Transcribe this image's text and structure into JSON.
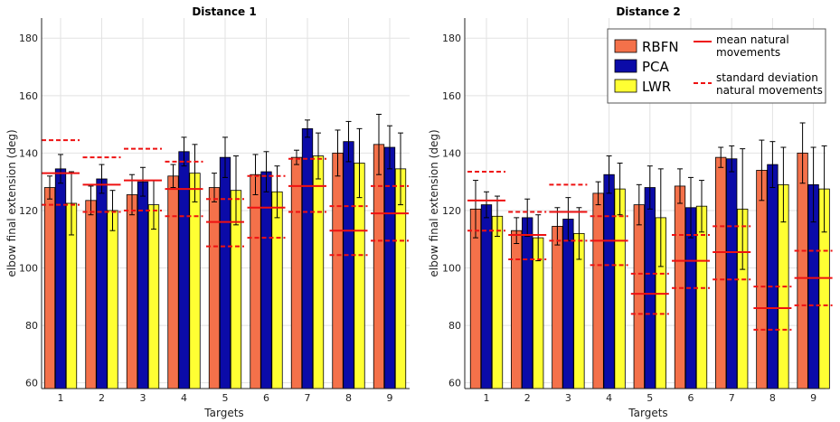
{
  "chart_data": [
    {
      "type": "bar",
      "title": "Distance 1",
      "xlabel": "Targets",
      "ylabel": "elbow final extension (deg)",
      "ylim": [
        58,
        187
      ],
      "yticks": [
        60,
        80,
        100,
        120,
        140,
        160,
        180
      ],
      "grid": true,
      "categories": [
        "1",
        "2",
        "3",
        "4",
        "5",
        "6",
        "7",
        "8",
        "9"
      ],
      "series": [
        {
          "name": "RBFN",
          "color": "#f4714a",
          "values": [
            128,
            123.5,
            125.5,
            132,
            128,
            132.5,
            138.5,
            140,
            143
          ],
          "errors": [
            4,
            5,
            7,
            4,
            5,
            7,
            2.5,
            8,
            10.5
          ]
        },
        {
          "name": "PCA",
          "color": "#0b0ba8",
          "values": [
            134.5,
            131,
            130,
            140.5,
            138.5,
            133.5,
            148.5,
            144,
            142
          ],
          "errors": [
            5,
            5,
            5,
            5,
            7,
            7,
            3,
            7,
            7.5
          ]
        },
        {
          "name": "LWR",
          "color": "#ffff33",
          "values": [
            122.5,
            120,
            122,
            133,
            127,
            126.5,
            139,
            136.5,
            134.5
          ],
          "errors": [
            11,
            7,
            8.5,
            10,
            12,
            9,
            8,
            12,
            12.5
          ]
        }
      ],
      "natural_mean": [
        133,
        129,
        130.5,
        127.5,
        116,
        121,
        128.5,
        113,
        119
      ],
      "natural_std_upper": [
        144.5,
        138.5,
        141.5,
        137,
        124,
        132,
        138,
        121.5,
        128.5
      ],
      "natural_std_lower": [
        122,
        119.5,
        120,
        118,
        107.5,
        110.5,
        119.5,
        104.5,
        109.5
      ]
    },
    {
      "type": "bar",
      "title": "Distance 2",
      "xlabel": "Targets",
      "ylabel": "elbow final extension (deg)",
      "ylim": [
        58,
        187
      ],
      "yticks": [
        60,
        80,
        100,
        120,
        140,
        160,
        180
      ],
      "grid": true,
      "categories": [
        "1",
        "2",
        "3",
        "4",
        "5",
        "6",
        "7",
        "8",
        "9"
      ],
      "series": [
        {
          "name": "RBFN",
          "color": "#f4714a",
          "values": [
            120.5,
            113,
            114.5,
            126,
            122,
            128.5,
            138.5,
            134,
            140
          ],
          "errors": [
            10,
            4.5,
            6.5,
            4,
            7,
            6,
            3.5,
            10.5,
            10.5
          ]
        },
        {
          "name": "PCA",
          "color": "#0b0ba8",
          "values": [
            122,
            117.5,
            117,
            132.5,
            128,
            121,
            138,
            136,
            129
          ],
          "errors": [
            4.5,
            6.5,
            7.5,
            6.5,
            7.5,
            10.5,
            4.5,
            8,
            13
          ]
        },
        {
          "name": "LWR",
          "color": "#ffff33",
          "values": [
            118,
            110.5,
            112,
            127.5,
            117.5,
            121.5,
            120.5,
            129,
            127.5
          ],
          "errors": [
            7,
            8,
            9,
            9,
            17,
            9,
            21,
            13,
            15
          ]
        }
      ],
      "natural_mean": [
        123.5,
        111.5,
        119.5,
        109.5,
        91,
        102.5,
        105.5,
        86,
        96.5
      ],
      "natural_std_upper": [
        133.5,
        119.5,
        129,
        118,
        98,
        111.5,
        114.5,
        93.5,
        106
      ],
      "natural_std_lower": [
        113,
        103,
        109.5,
        101,
        84,
        93,
        96,
        78.5,
        87
      ]
    }
  ],
  "legend": {
    "rbfn": "RBFN",
    "pca": "PCA",
    "lwr": "LWR",
    "mean_line1": "mean natural",
    "mean_line2": "movements",
    "std_line1": "standard deviation",
    "std_line2": "natural movements"
  },
  "colors": {
    "rbfn": "#f4714a",
    "pca": "#0b0ba8",
    "lwr": "#ffff33",
    "natural": "#ee1111",
    "grid": "#e2e2e2",
    "axis": "#222222"
  }
}
